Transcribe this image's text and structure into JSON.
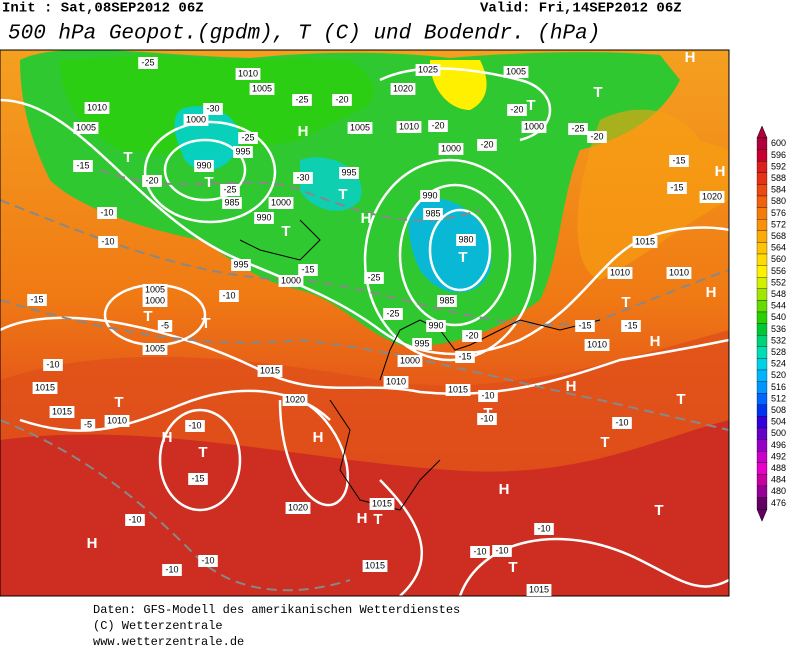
{
  "header": {
    "init": "Init : Sat,08SEP2012 06Z",
    "valid": "Valid: Fri,14SEP2012 06Z",
    "title": "500 hPa Geopot.(gpdm), T (C) und Bodendr. (hPa)"
  },
  "colorbar": {
    "values": [
      600,
      596,
      592,
      588,
      584,
      580,
      576,
      572,
      568,
      564,
      560,
      556,
      552,
      548,
      544,
      540,
      536,
      532,
      528,
      524,
      520,
      516,
      512,
      508,
      504,
      500,
      496,
      492,
      488,
      484,
      480,
      476
    ],
    "colors": [
      "#b0003c",
      "#c80032",
      "#dc1e1e",
      "#e63214",
      "#ec4a10",
      "#f0620c",
      "#f47a0a",
      "#f89208",
      "#fbaa06",
      "#fdc404",
      "#fedc02",
      "#fff000",
      "#d2f000",
      "#a0e600",
      "#64dc00",
      "#28d200",
      "#00c832",
      "#00d278",
      "#00dcb4",
      "#00d2e6",
      "#00b4ff",
      "#0096ff",
      "#0064ff",
      "#0032f0",
      "#3200dc",
      "#6400c8",
      "#9600c8",
      "#c800c8",
      "#e600c8",
      "#c800a0",
      "#960096",
      "#640064"
    ]
  },
  "map": {
    "labels": [
      "1010",
      "1005",
      "1000",
      "990",
      "995",
      "985",
      "990",
      "1000",
      "995",
      "1005",
      "1010",
      "1020",
      "1025",
      "1005",
      "1000",
      "1000",
      "990",
      "985",
      "980",
      "985",
      "990",
      "995",
      "1000",
      "1010",
      "1015",
      "995",
      "1000",
      "1005",
      "1000",
      "1005",
      "1015",
      "1015",
      "1010",
      "1015",
      "1020",
      "1020",
      "1015",
      "1015",
      "1015",
      "1010",
      "1010",
      "1015",
      "1010",
      "1020",
      "1010",
      "1005",
      "-25",
      "-25",
      "-30",
      "-25",
      "-20",
      "-20",
      "-20",
      "-20",
      "-25",
      "-20",
      "-15",
      "-20",
      "-25",
      "-30",
      "-15",
      "-25",
      "-25",
      "-20",
      "-15",
      "-10",
      "-10",
      "-15",
      "-10",
      "-5",
      "-10",
      "-5",
      "-10",
      "-15",
      "-10",
      "-10",
      "-15",
      "-15",
      "-10",
      "-10",
      "-10",
      "-10",
      "-10",
      "-10",
      "-10",
      "-15",
      "-15",
      "T",
      "H",
      "T",
      "T",
      "T",
      "H",
      "T",
      "T",
      "T",
      "H",
      "T",
      "T",
      "H",
      "T",
      "H",
      "H",
      "T",
      "T",
      "T",
      "H",
      "T",
      "H",
      "T",
      "T",
      "H",
      "T",
      "H",
      "H",
      "T",
      "H"
    ]
  },
  "footer": {
    "source": "Daten: GFS-Modell des amerikanischen Wetterdienstes",
    "copyright": "(C) Wetterzentrale",
    "url": "www.wetterzentrale.de"
  }
}
